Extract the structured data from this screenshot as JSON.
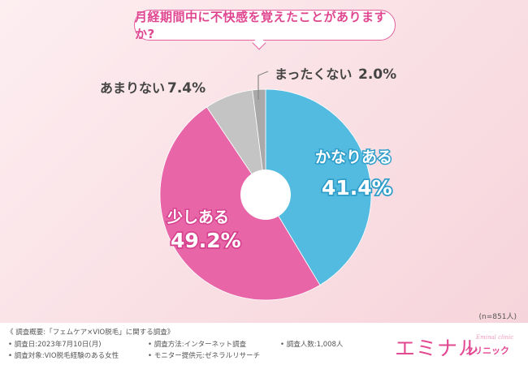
{
  "chart_data": {
    "type": "pie",
    "title": "月経期間中に不快感を覚えたことがありますか?",
    "sample_size": "(n=851人)",
    "slices": [
      {
        "label": "かなりある",
        "value": 41.4,
        "value_label": "41.4%",
        "color": "#54bbe0"
      },
      {
        "label": "少しある",
        "value": 49.2,
        "value_label": "49.2%",
        "color": "#e866a8"
      },
      {
        "label": "あまりない",
        "value": 7.4,
        "value_label": "7.4%",
        "color": "#c4c4c4"
      },
      {
        "label": "まったくない",
        "value": 2.0,
        "value_label": "2.0%",
        "color": "#a9a9a9"
      }
    ]
  },
  "survey": {
    "heading": "《 調査概要:「フェムケア×VIO脱毛」に関する調査》",
    "date": "• 調査日:2023年7月10日(月)",
    "method": "• 調査方法:インターネット調査",
    "count": "• 調査人数:1,008人",
    "target": "• 調査対象:VIO脱毛経験のある女性",
    "provider": "• モニター提供元:ゼネラルリサーチ"
  },
  "logo": {
    "main": "エミナル",
    "sub": "クリニック",
    "small": "Eminal clinic"
  }
}
